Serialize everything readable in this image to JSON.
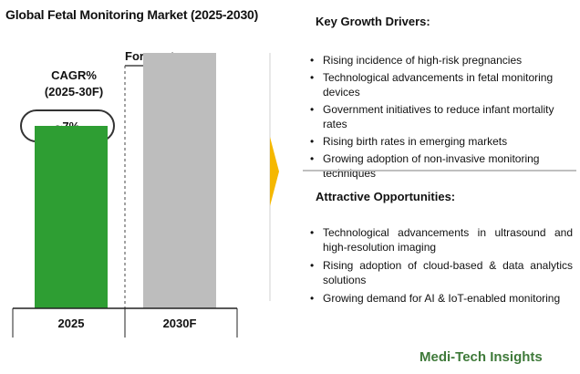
{
  "title": "Global Fetal Monitoring Market (2025-2030)",
  "cagr": {
    "label_line1": "CAGR%",
    "label_line2": "(2025-30F)",
    "value": "~7%"
  },
  "forecast_label": "Forecast",
  "chart_data": {
    "type": "bar",
    "categories": [
      "2025",
      "2030F"
    ],
    "values": [
      1.0,
      1.4
    ],
    "ylim": [
      0,
      1.6
    ],
    "grid": false,
    "bar_colors": [
      "#2e9e33",
      "#bdbdbd"
    ]
  },
  "colors": {
    "arrow": "#f5b800",
    "brand": "#3f7a3a",
    "divider": "#bfbfbf"
  },
  "key_growth_drivers": {
    "title": "Key Growth Drivers:",
    "items": [
      "Rising incidence of high-risk pregnancies",
      "Technological advancements in fetal monitoring devices",
      "Government initiatives to reduce infant mortality rates",
      "Rising birth rates in emerging markets",
      "Growing adoption of non-invasive monitoring techniques"
    ]
  },
  "attractive_opportunities": {
    "title": "Attractive Opportunities:",
    "items": [
      "Technological advancements in ultrasound and high-resolution imaging",
      "Rising adoption of cloud-based & data analytics solutions",
      "Growing demand for AI & IoT-enabled monitoring"
    ]
  },
  "brand": "Medi-Tech Insights"
}
